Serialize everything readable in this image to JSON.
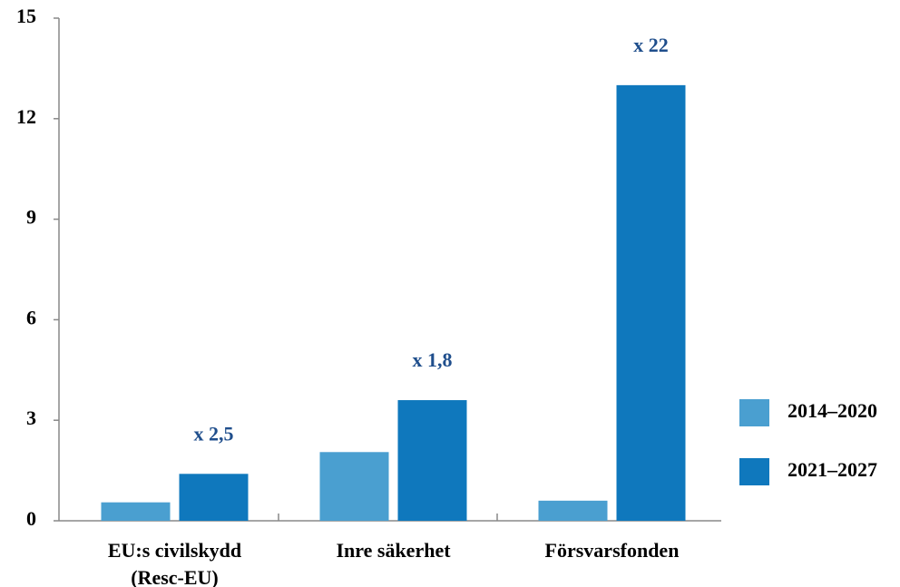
{
  "chart_data": {
    "type": "bar",
    "categories": [
      "EU:s civilskydd\n(Resc-EU)",
      "Inre säkerhet",
      "Försvarsfonden"
    ],
    "series": [
      {
        "name": "2014–2020",
        "color": "#4a9fd0",
        "values": [
          0.55,
          2.05,
          0.6
        ]
      },
      {
        "name": "2021–2027",
        "color": "#0f78bd",
        "values": [
          1.4,
          3.6,
          13.0
        ]
      }
    ],
    "annotations": [
      "x 2,5",
      "x 1,8",
      "x 22"
    ],
    "annotation_color": "#1f4e8c",
    "ylim": [
      0,
      15
    ],
    "yticks": [
      0,
      3,
      6,
      9,
      12,
      15
    ],
    "grid": false,
    "legend": "right"
  }
}
